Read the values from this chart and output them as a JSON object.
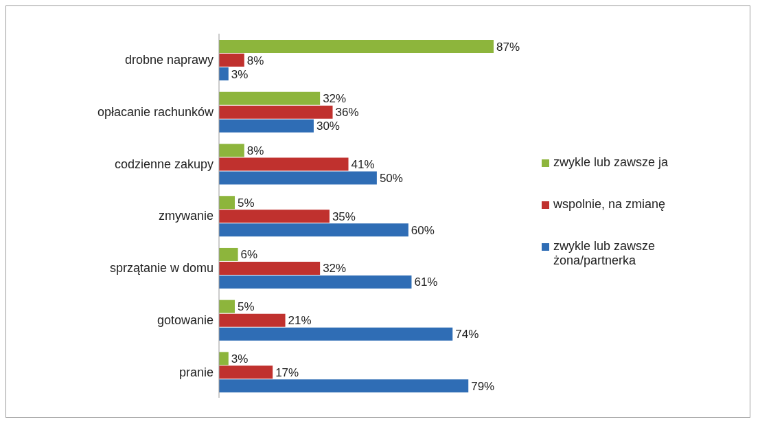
{
  "chart_data": {
    "type": "bar",
    "orientation": "horizontal",
    "categories": [
      "drobne naprawy",
      "opłacanie rachunków",
      "codzienne zakupy",
      "zmywanie",
      "sprzątanie w domu",
      "gotowanie",
      "pranie"
    ],
    "series": [
      {
        "name": "zwykle lub zawsze ja",
        "color": "#8db53c",
        "values": [
          87,
          32,
          8,
          5,
          6,
          5,
          3
        ],
        "value_labels": [
          "87%",
          "32%",
          "8%",
          "5%",
          "6%",
          "5%",
          "3%"
        ]
      },
      {
        "name": "wspolnie, na zmianę",
        "color": "#c0312e",
        "values": [
          8,
          36,
          41,
          35,
          32,
          21,
          17
        ],
        "value_labels": [
          "8%",
          "36%",
          "41%",
          "35%",
          "32%",
          "21%",
          "17%"
        ]
      },
      {
        "name": "zwykle lub zawsze żona/partnerka",
        "color": "#2f6db5",
        "values": [
          3,
          30,
          50,
          60,
          61,
          74,
          79
        ],
        "value_labels": [
          "3%",
          "30%",
          "50%",
          "60%",
          "61%",
          "74%",
          "79%"
        ]
      }
    ],
    "legend": "right"
  }
}
